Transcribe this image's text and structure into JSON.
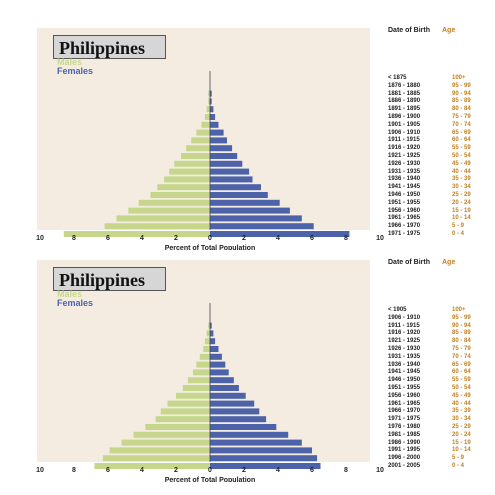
{
  "colors": {
    "background": "#f4ece1",
    "males": "#c6d78c",
    "females": "#4c63a9",
    "age_text": "#c08020",
    "title_box": "#d6d6d6"
  },
  "chart_data": [
    {
      "type": "bar",
      "title": "Philippines",
      "legend": [
        "Males",
        "Females"
      ],
      "xlabel": "Percent of Total Population",
      "xlim": [
        -10,
        10
      ],
      "x_ticks": [
        "10",
        "8",
        "6",
        "4",
        "2",
        "0",
        "2",
        "4",
        "6",
        "8",
        "10"
      ],
      "column_headers": {
        "birth": "Date of Birth",
        "age": "Age"
      },
      "birth_labels": [
        "< 1875",
        "1876 - 1880",
        "1881 - 1885",
        "1886 - 1890",
        "1891 - 1895",
        "1896 - 1900",
        "1901 - 1905",
        "1906 - 1910",
        "1911 - 1915",
        "1916 - 1920",
        "1921 - 1925",
        "1926 - 1930",
        "1931 - 1935",
        "1936 - 1940",
        "1941 - 1945",
        "1946 - 1950",
        "1951 - 1955",
        "1956 - 1960",
        "1961 - 1965",
        "1966 - 1970",
        "1971 - 1975"
      ],
      "categories": [
        "100+",
        "95 - 99",
        "90 - 94",
        "85 - 89",
        "80 - 84",
        "75 - 79",
        "70 - 74",
        "65 - 69",
        "60 - 64",
        "55 - 59",
        "50 - 54",
        "45 - 49",
        "40 - 44",
        "35 - 39",
        "30 - 34",
        "25 - 29",
        "20 - 24",
        "15 - 19",
        "10 - 14",
        "5 - 9",
        "0 - 4"
      ],
      "series": [
        {
          "name": "Males",
          "values": [
            0.0,
            0.0,
            0.1,
            0.1,
            0.2,
            0.3,
            0.5,
            0.8,
            1.1,
            1.4,
            1.7,
            2.1,
            2.4,
            2.7,
            3.1,
            3.5,
            4.2,
            4.8,
            5.5,
            6.2,
            8.6
          ]
        },
        {
          "name": "Females",
          "values": [
            0.0,
            0.0,
            0.1,
            0.1,
            0.2,
            0.3,
            0.5,
            0.8,
            1.0,
            1.3,
            1.6,
            1.9,
            2.3,
            2.5,
            3.0,
            3.4,
            4.1,
            4.7,
            5.4,
            6.1,
            8.2
          ]
        }
      ]
    },
    {
      "type": "bar",
      "title": "Philippines",
      "legend": [
        "Males",
        "Females"
      ],
      "xlabel": "Percent of Total Population",
      "xlim": [
        -10,
        10
      ],
      "x_ticks": [
        "10",
        "8",
        "6",
        "4",
        "2",
        "0",
        "2",
        "4",
        "6",
        "8",
        "10"
      ],
      "column_headers": {
        "birth": "Date of Birth",
        "age": "Age"
      },
      "birth_labels": [
        "< 1905",
        "1906 - 1910",
        "1911 - 1915",
        "1916 - 1920",
        "1921 - 1925",
        "1926 - 1930",
        "1931 - 1935",
        "1936 - 1940",
        "1941 - 1945",
        "1946 - 1950",
        "1951 - 1955",
        "1956 - 1960",
        "1961 - 1965",
        "1966 - 1970",
        "1971 - 1975",
        "1976 - 1980",
        "1981 - 1985",
        "1986 - 1990",
        "1991 - 1995",
        "1996 - 2000",
        "2001 - 2005"
      ],
      "categories": [
        "100+",
        "95 - 99",
        "90 - 94",
        "85 - 89",
        "80 - 84",
        "75 - 79",
        "70 - 74",
        "65 - 69",
        "60 - 64",
        "55 - 59",
        "50 - 54",
        "45 - 49",
        "40 - 44",
        "35 - 39",
        "30 - 34",
        "25 - 29",
        "20 - 24",
        "15 - 19",
        "10 - 14",
        "5 - 9",
        "0 - 4"
      ],
      "series": [
        {
          "name": "Males",
          "values": [
            0.0,
            0.0,
            0.1,
            0.2,
            0.3,
            0.4,
            0.6,
            0.8,
            1.0,
            1.3,
            1.6,
            2.0,
            2.5,
            2.9,
            3.2,
            3.8,
            4.5,
            5.2,
            5.9,
            6.3,
            6.8
          ]
        },
        {
          "name": "Females",
          "values": [
            0.0,
            0.0,
            0.1,
            0.2,
            0.3,
            0.5,
            0.7,
            0.9,
            1.1,
            1.4,
            1.7,
            2.1,
            2.6,
            2.9,
            3.3,
            3.9,
            4.6,
            5.4,
            6.0,
            6.3,
            6.5
          ]
        }
      ]
    }
  ]
}
